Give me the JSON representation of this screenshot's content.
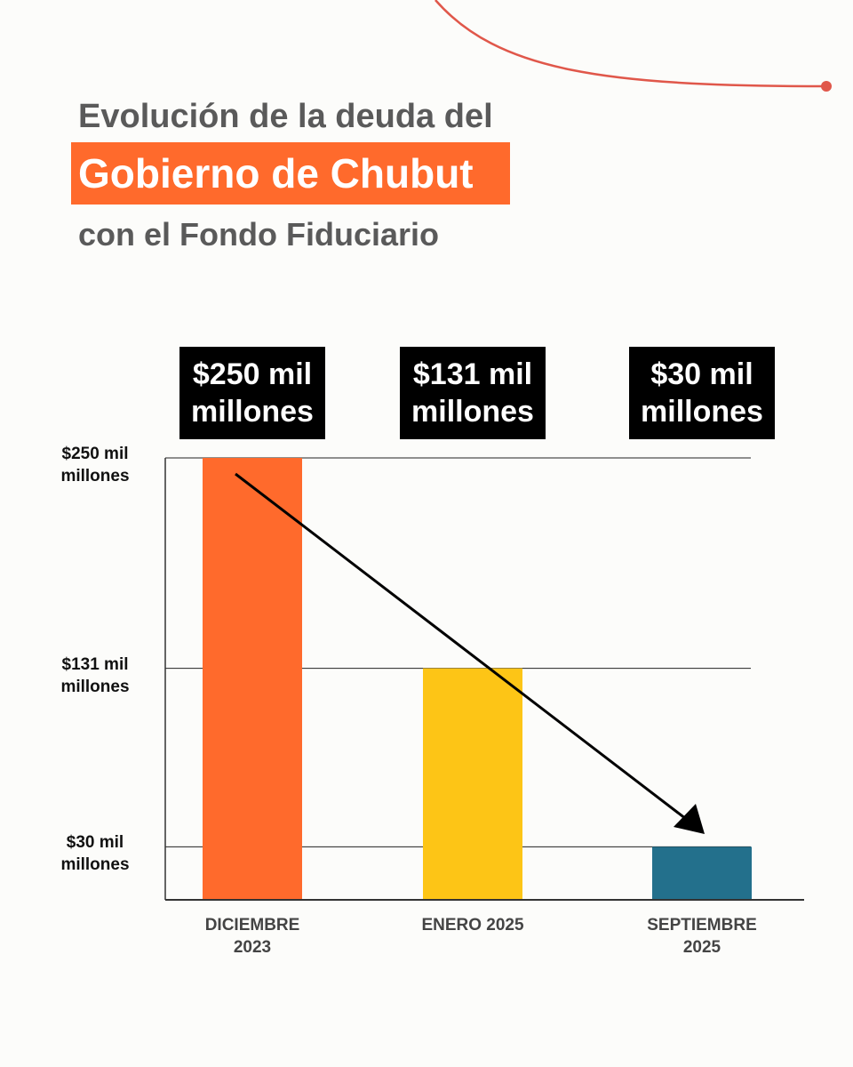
{
  "chart_data": {
    "type": "bar",
    "title_lines": [
      "Evolución de la deuda del",
      "Gobierno de Chubut",
      "con el Fondo Fiduciario"
    ],
    "categories": [
      "DICIEMBRE 2023",
      "ENERO 2025",
      "SEPTIEMBRE 2025"
    ],
    "values": [
      250,
      131,
      30
    ],
    "value_labels": [
      "$250 mil millones",
      "$131 mil millones",
      "$30 mil millones"
    ],
    "colors": [
      "#ff6a2c",
      "#fdc516",
      "#23708c"
    ],
    "ylim": [
      0,
      250
    ],
    "yticks": [
      {
        "value": 250,
        "label": "$250 mil millones"
      },
      {
        "value": 131,
        "label": "$131 mil millones"
      },
      {
        "value": 30,
        "label": "$30 mil millones"
      }
    ],
    "grid": true
  }
}
